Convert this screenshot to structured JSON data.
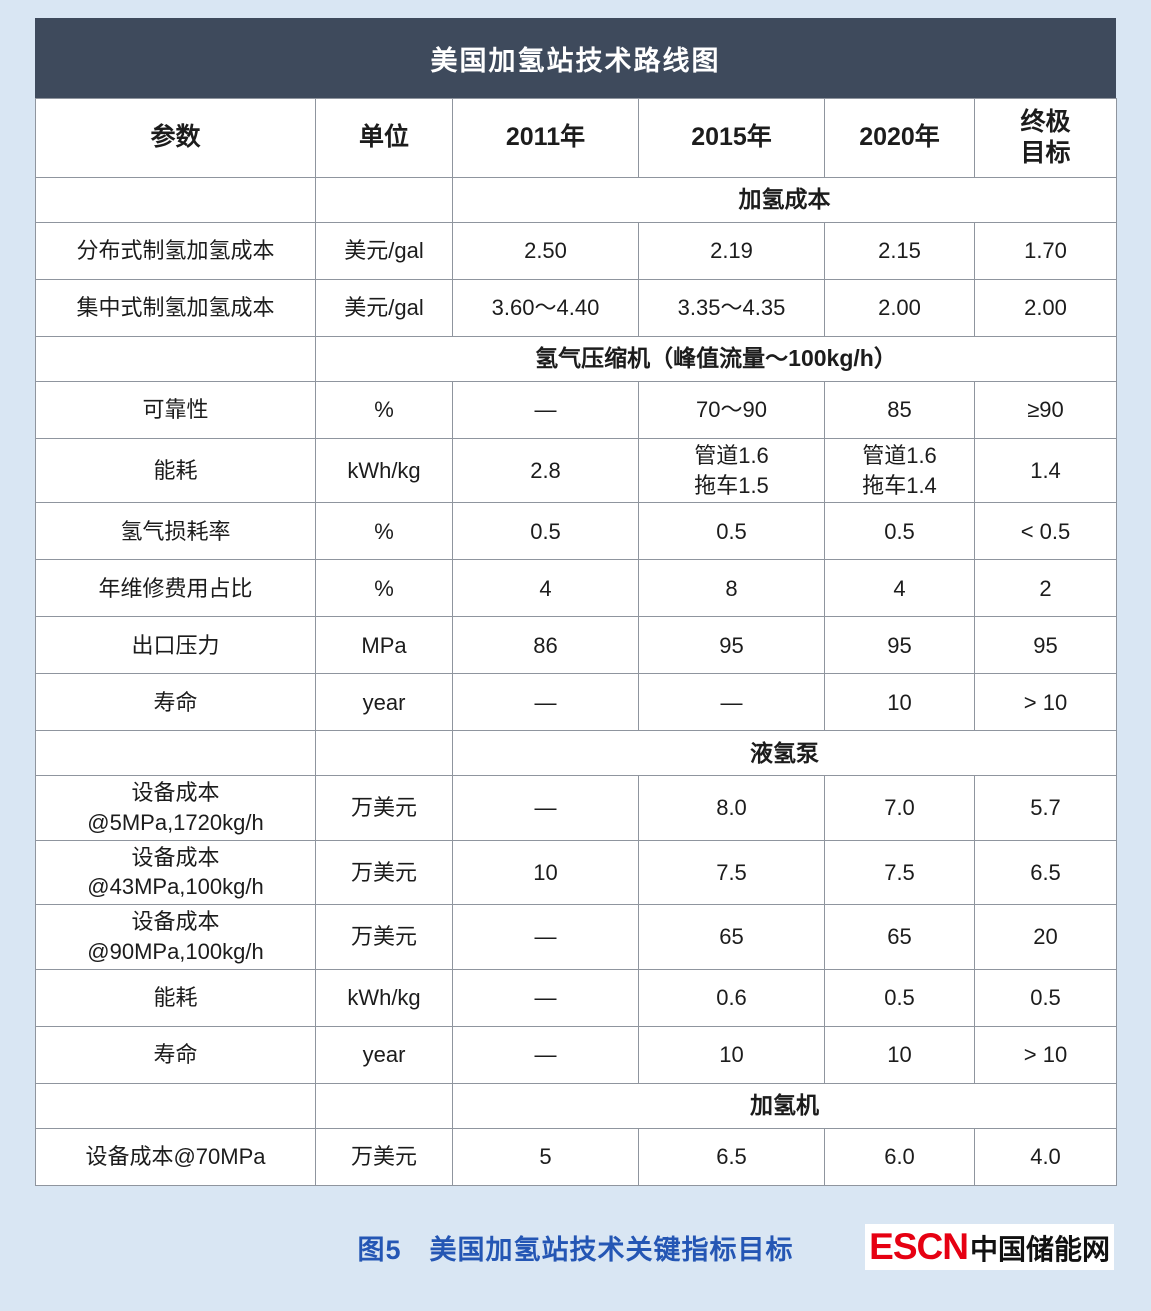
{
  "chart_data": {
    "type": "table",
    "title": "美国加氢站技术路线图",
    "columns": [
      "参数",
      "单位",
      "2011年",
      "2015年",
      "2020年",
      "终极\n目标"
    ],
    "rows": [
      {
        "type": "section",
        "label": "加氢成本",
        "span": 4
      },
      {
        "type": "data",
        "param": "分布式制氢加氢成本",
        "unit": "美元/gal",
        "values": [
          "2.50",
          "2.19",
          "2.15",
          "1.70"
        ]
      },
      {
        "type": "data",
        "param": "集中式制氢加氢成本",
        "unit": "美元/gal",
        "values": [
          "3.60～4.40",
          "3.35～4.35",
          "2.00",
          "2.00"
        ]
      },
      {
        "type": "section",
        "label": "氢气压缩机（峰值流量～100kg/h）",
        "span": 5
      },
      {
        "type": "data",
        "param": "可靠性",
        "unit": "%",
        "values": [
          "—",
          "70～90",
          "85",
          "≥90"
        ]
      },
      {
        "type": "data",
        "param": "能耗",
        "unit": "kWh/kg",
        "values": [
          "2.8",
          "管道1.6\n拖车1.5",
          "管道1.6\n拖车1.4",
          "1.4"
        ]
      },
      {
        "type": "data",
        "param": "氢气损耗率",
        "unit": "%",
        "values": [
          "0.5",
          "0.5",
          "0.5",
          "< 0.5"
        ]
      },
      {
        "type": "data",
        "param": "年维修费用占比",
        "unit": "%",
        "values": [
          "4",
          "8",
          "4",
          "2"
        ]
      },
      {
        "type": "data",
        "param": "出口压力",
        "unit": "MPa",
        "values": [
          "86",
          "95",
          "95",
          "95"
        ]
      },
      {
        "type": "data",
        "param": "寿命",
        "unit": "year",
        "values": [
          "—",
          "—",
          "10",
          "> 10"
        ]
      },
      {
        "type": "section",
        "label": "液氢泵",
        "span": 4
      },
      {
        "type": "data",
        "param": "设备成本\n@5MPa,1720kg/h",
        "unit": "万美元",
        "values": [
          "—",
          "8.0",
          "7.0",
          "5.7"
        ]
      },
      {
        "type": "data",
        "param": "设备成本\n@43MPa,100kg/h",
        "unit": "万美元",
        "values": [
          "10",
          "7.5",
          "7.5",
          "6.5"
        ]
      },
      {
        "type": "data",
        "param": "设备成本\n@90MPa,100kg/h",
        "unit": "万美元",
        "values": [
          "—",
          "65",
          "65",
          "20"
        ]
      },
      {
        "type": "data",
        "param": "能耗",
        "unit": "kWh/kg",
        "values": [
          "—",
          "0.6",
          "0.5",
          "0.5"
        ]
      },
      {
        "type": "data",
        "param": "寿命",
        "unit": "year",
        "values": [
          "—",
          "10",
          "10",
          "> 10"
        ]
      },
      {
        "type": "section",
        "label": "加氢机",
        "span": 4
      },
      {
        "type": "data",
        "param": "设备成本@70MPa",
        "unit": "万美元",
        "values": [
          "5",
          "6.5",
          "6.0",
          "4.0"
        ]
      }
    ]
  },
  "footer": {
    "caption": "图5　美国加氢站技术关键指标目标",
    "logo_escn": "ESCN",
    "logo_cn": "中国储能网"
  },
  "colors": {
    "title_bar": "#3e4a5c",
    "page_background": "#d9e6f3",
    "caption_blue": "#2456b4",
    "logo_red": "#e60012"
  }
}
